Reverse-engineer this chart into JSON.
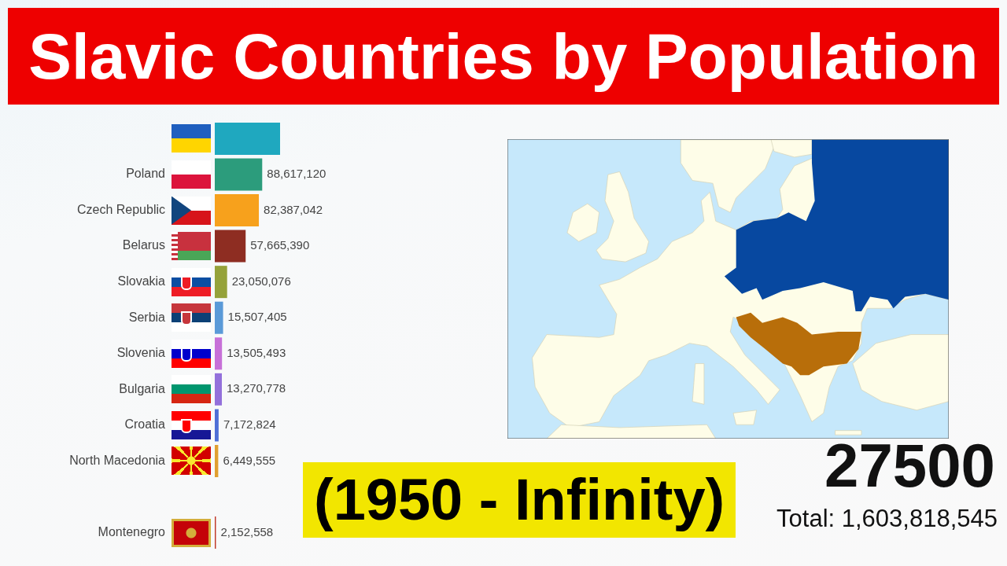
{
  "chart_data": {
    "type": "bar",
    "orientation": "horizontal",
    "title": "Slavic Countries by Population",
    "subtitle": "(1950 - Infinity)",
    "categories": [
      null,
      "Poland",
      "Czech Republic",
      "Belarus",
      "Slovakia",
      "Serbia",
      "Slovenia",
      "Bulgaria",
      "Croatia",
      "North Macedonia",
      null,
      "Montenegro"
    ],
    "values": [
      122000000,
      88617120,
      82387042,
      57665390,
      23050076,
      15507405,
      13505493,
      13270778,
      7172824,
      6449555,
      null,
      2152558
    ],
    "colors": [
      "#1fa8bf",
      "#2c9c7c",
      "#f7a11c",
      "#8e2d22",
      "#95a23a",
      "#5a9ad8",
      "#c770d8",
      "#9370db",
      "#4f6fd6",
      "#e0a030",
      "#7f8c8d",
      "#c0392b"
    ],
    "value_labels": [
      null,
      "88,617,120",
      "82,387,042",
      "57,665,390",
      "23,050,076",
      "15,507,405",
      "13,505,493",
      "13,270,778",
      "7,172,824",
      "6,449,555",
      null,
      "2,152,558"
    ],
    "annotations": [
      "27500",
      "Total: 1,603,818,545"
    ],
    "tick_labels": "y",
    "grid": false,
    "legend": false
  }
}
